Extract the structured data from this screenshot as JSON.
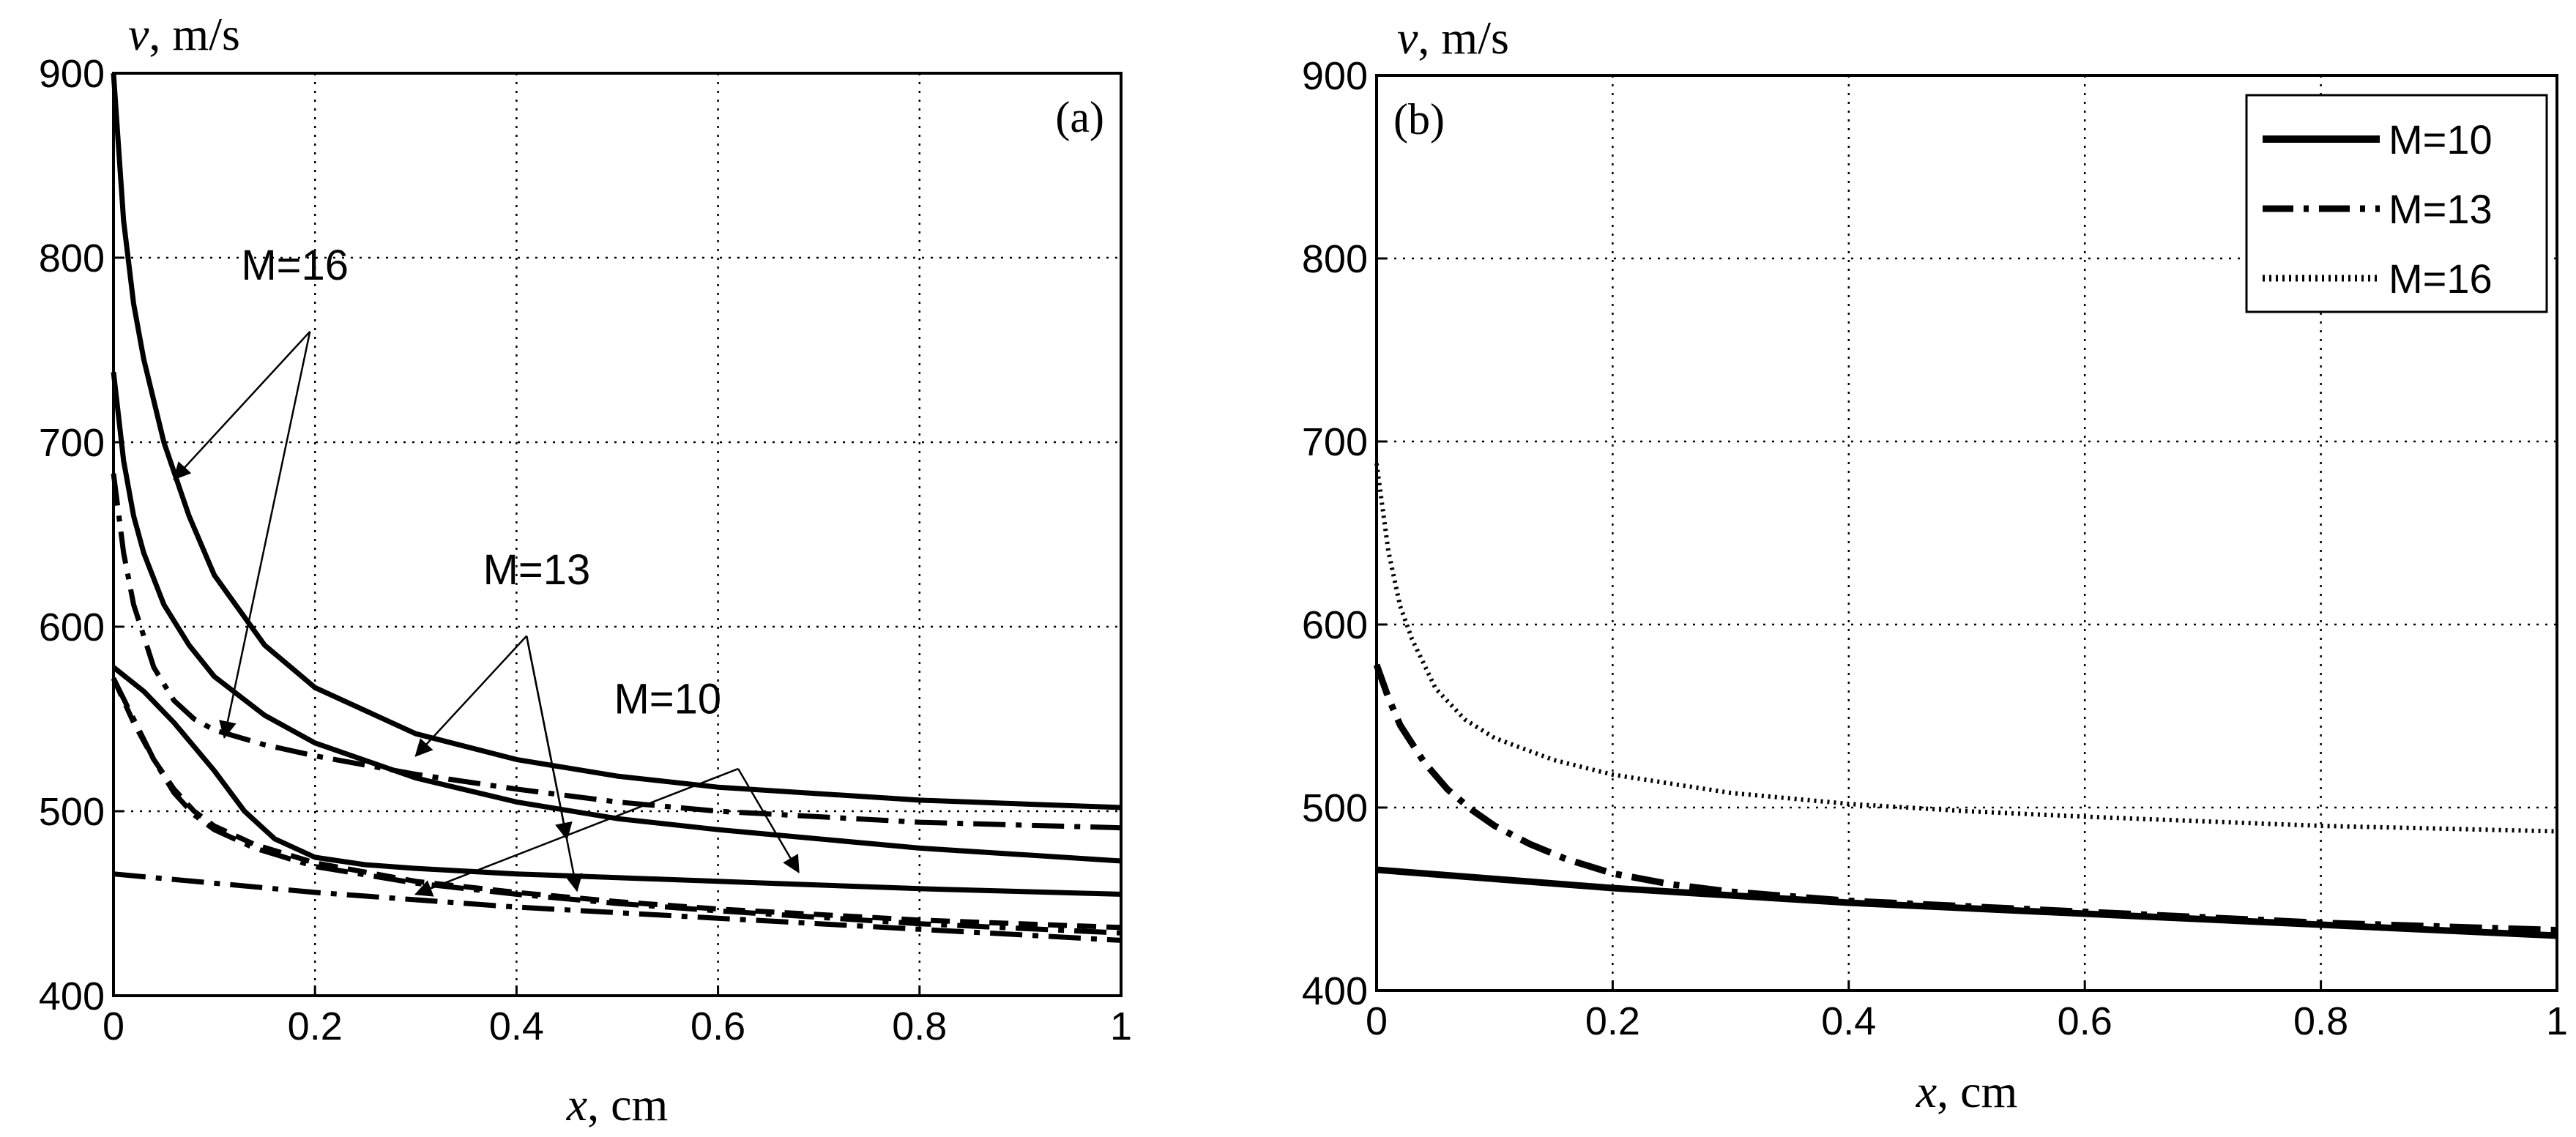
{
  "chart_data": [
    {
      "type": "line",
      "panel_label": "(a)",
      "xlabel_var": "x",
      "xlabel_unit": ", cm",
      "ylabel_var": "v",
      "ylabel_unit": ", m/s",
      "xlim": [
        0,
        1
      ],
      "ylim": [
        400,
        900
      ],
      "xticks": [
        0,
        0.2,
        0.4,
        0.6,
        0.8,
        1
      ],
      "xtick_labels": [
        "0",
        "0.2",
        "0.4",
        "0.6",
        "0.8",
        "1"
      ],
      "yticks": [
        400,
        500,
        600,
        700,
        800,
        900
      ],
      "ytick_labels": [
        "400",
        "500",
        "600",
        "700",
        "800",
        "900"
      ],
      "grid": true,
      "series": [
        {
          "name": "M=16 solid upper",
          "style": "solid",
          "x": [
            0,
            0.01,
            0.02,
            0.03,
            0.05,
            0.075,
            0.1,
            0.15,
            0.2,
            0.3,
            0.4,
            0.5,
            0.6,
            0.8,
            1.0
          ],
          "y": [
            900,
            820,
            775,
            745,
            700,
            660,
            628,
            590,
            567,
            542,
            528,
            519,
            513,
            506,
            502
          ]
        },
        {
          "name": "M=16 solid lower",
          "style": "solid",
          "x": [
            0,
            0.01,
            0.02,
            0.03,
            0.05,
            0.075,
            0.1,
            0.15,
            0.2,
            0.3,
            0.4,
            0.5,
            0.6,
            0.8,
            1.0
          ],
          "y": [
            738,
            690,
            660,
            640,
            612,
            590,
            573,
            552,
            537,
            518,
            505,
            496,
            490,
            480,
            473
          ]
        },
        {
          "name": "M=16 dash-dot",
          "style": "dashdot",
          "x": [
            0,
            0.01,
            0.02,
            0.04,
            0.06,
            0.08,
            0.1,
            0.15,
            0.2,
            0.3,
            0.4,
            0.5,
            0.6,
            0.8,
            1.0
          ],
          "y": [
            683,
            640,
            612,
            578,
            560,
            550,
            544,
            536,
            530,
            520,
            512,
            505,
            500,
            494,
            491
          ]
        },
        {
          "name": "M=13 solid",
          "style": "solid",
          "x": [
            0,
            0.03,
            0.06,
            0.1,
            0.13,
            0.16,
            0.2,
            0.25,
            0.3,
            0.4,
            0.5,
            0.6,
            0.8,
            1.0
          ],
          "y": [
            578,
            565,
            548,
            522,
            500,
            485,
            475,
            471,
            469,
            466,
            464,
            462,
            458,
            455
          ]
        },
        {
          "name": "M=13 dashed",
          "style": "dashed",
          "x": [
            0,
            0.02,
            0.04,
            0.06,
            0.08,
            0.1,
            0.14,
            0.2,
            0.3,
            0.4,
            0.5,
            0.6,
            0.8,
            1.0
          ],
          "y": [
            572,
            548,
            528,
            512,
            500,
            492,
            482,
            472,
            462,
            456,
            451,
            447,
            441,
            437
          ]
        },
        {
          "name": "M=13 dash-dot",
          "style": "dashdot",
          "x": [
            0,
            0.02,
            0.04,
            0.06,
            0.08,
            0.1,
            0.14,
            0.2,
            0.3,
            0.4,
            0.5,
            0.6,
            0.8,
            1.0
          ],
          "y": [
            572,
            550,
            528,
            510,
            498,
            490,
            480,
            470,
            461,
            455,
            450,
            446,
            439,
            434
          ]
        },
        {
          "name": "M=10 dash-dot",
          "style": "dashdot",
          "x": [
            0,
            0.1,
            0.2,
            0.3,
            0.4,
            0.5,
            0.6,
            0.7,
            0.8,
            0.9,
            1.0
          ],
          "y": [
            466,
            461,
            456,
            452,
            448,
            445,
            442,
            439,
            436,
            433,
            430
          ]
        }
      ],
      "annotations": [
        {
          "text": "M=16",
          "pos": [
            0.18,
            788
          ],
          "arrows": [
            [
              0.195,
              760,
              0.06,
              680
            ],
            [
              0.195,
              760,
              0.11,
              540
            ]
          ]
        },
        {
          "text": "M=13",
          "pos": [
            0.42,
            623
          ],
          "arrows": [
            [
              0.41,
              595,
              0.3,
              530
            ],
            [
              0.41,
              595,
              0.46,
              457
            ],
            [
              0.41,
              595,
              0.45,
              485
            ]
          ]
        },
        {
          "text": "M=10",
          "pos": [
            0.55,
            553
          ],
          "arrows": [
            [
              0.62,
              523,
              0.3,
              455
            ],
            [
              0.62,
              523,
              0.68,
              467
            ]
          ]
        }
      ]
    },
    {
      "type": "line",
      "panel_label": "(b)",
      "xlabel_var": "x",
      "xlabel_unit": ", cm",
      "ylabel_var": "v",
      "ylabel_unit": ", m/s",
      "xlim": [
        0,
        1
      ],
      "ylim": [
        400,
        900
      ],
      "xticks": [
        0,
        0.2,
        0.4,
        0.6,
        0.8,
        1
      ],
      "xtick_labels": [
        "0",
        "0.2",
        "0.4",
        "0.6",
        "0.8",
        "1"
      ],
      "yticks": [
        400,
        500,
        600,
        700,
        800,
        900
      ],
      "ytick_labels": [
        "400",
        "500",
        "600",
        "700",
        "800",
        "900"
      ],
      "grid": true,
      "legend_position": "top-right",
      "series": [
        {
          "name": "M=10",
          "style": "solid",
          "x": [
            0,
            0.1,
            0.2,
            0.3,
            0.4,
            0.5,
            0.6,
            0.7,
            0.8,
            0.9,
            1.0
          ],
          "y": [
            466,
            461,
            456,
            452,
            448,
            445,
            442,
            439,
            436,
            433,
            430
          ]
        },
        {
          "name": "M=13",
          "style": "dashdot",
          "x": [
            0,
            0.01,
            0.02,
            0.04,
            0.06,
            0.08,
            0.1,
            0.13,
            0.16,
            0.2,
            0.25,
            0.3,
            0.4,
            0.5,
            0.6,
            0.8,
            1.0
          ],
          "y": [
            578,
            560,
            545,
            525,
            510,
            499,
            490,
            480,
            472,
            464,
            458,
            454,
            449,
            446,
            443,
            437,
            433
          ]
        },
        {
          "name": "M=16",
          "style": "dotted",
          "x": [
            0,
            0.01,
            0.02,
            0.03,
            0.05,
            0.075,
            0.1,
            0.15,
            0.2,
            0.3,
            0.4,
            0.5,
            0.6,
            0.8,
            1.0
          ],
          "y": [
            688,
            640,
            610,
            592,
            565,
            548,
            538,
            526,
            518,
            508,
            502,
            498,
            495,
            490,
            487
          ]
        }
      ]
    }
  ]
}
